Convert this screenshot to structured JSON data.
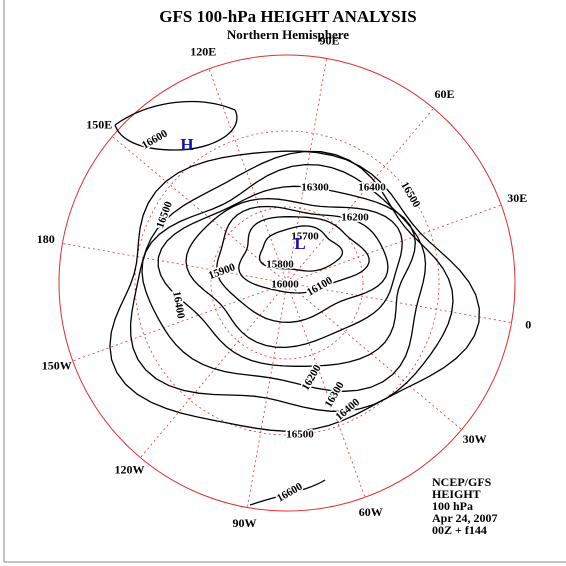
{
  "header": {
    "title": "GFS 100-hPa HEIGHT ANALYSIS",
    "subtitle": "Northern Hemisphere"
  },
  "longitude_labels": [
    "120E",
    "90E",
    "60E",
    "30E",
    "0",
    "30W",
    "60W",
    "90W",
    "120W",
    "150W",
    "180",
    "150E"
  ],
  "contour_labels": [
    "16600",
    "16500",
    "16400",
    "16300",
    "16400",
    "16500",
    "16200",
    "15700",
    "15800",
    "15900",
    "16000",
    "16100",
    "16200",
    "16300",
    "16400",
    "16500",
    "16600"
  ],
  "centers": [
    "H",
    "L"
  ],
  "footer": [
    "NCEP/GFS",
    "HEIGHT",
    "100 hPa",
    "Apr 24, 2007",
    "00Z + f144"
  ]
}
